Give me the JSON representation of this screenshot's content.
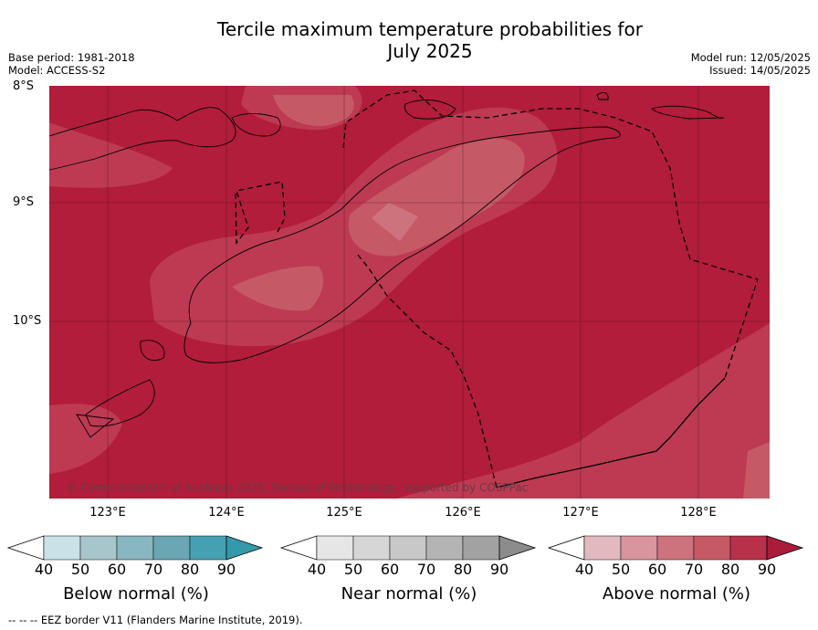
{
  "title_line1": "Tercile maximum temperature probabilities for",
  "title_line2": "July 2025",
  "base_period": "Base period: 1981-2018",
  "model": "Model: ACCESS-S2",
  "model_run": "Model run: 12/05/2025",
  "issued": "Issued: 14/05/2025",
  "lat_labels": [
    "8°S",
    "9°S",
    "10°S"
  ],
  "lon_labels": [
    "123°E",
    "124°E",
    "125°E",
    "126°E",
    "127°E",
    "128°E"
  ],
  "copyright": "© Commonwealth of Australia 2025, Bureau of Meteorology, supported by COSPPac",
  "footer": "--  --  -- EEZ border V11 (Flanders Marine Institute, 2019).",
  "colorbars": [
    {
      "label": "Below normal (%)",
      "ticks": [
        "40",
        "50",
        "60",
        "70",
        "80",
        "90"
      ],
      "colors": [
        "#ffffff",
        "#c9e1e7",
        "#a7c6cc",
        "#88b6c1",
        "#6ba6b4",
        "#45a0b2",
        "#3499aa"
      ]
    },
    {
      "label": "Near normal (%)",
      "ticks": [
        "40",
        "50",
        "60",
        "70",
        "80",
        "90"
      ],
      "colors": [
        "#ffffff",
        "#e6e6e6",
        "#d6d6d6",
        "#c8c8c8",
        "#b4b4b4",
        "#a2a2a2",
        "#8c8c8c"
      ]
    },
    {
      "label": "Above normal (%)",
      "ticks": [
        "40",
        "50",
        "60",
        "70",
        "80",
        "90"
      ],
      "colors": [
        "#ffffff",
        "#e2b9bf",
        "#d9959e",
        "#cd737d",
        "#c55a66",
        "#b8304a",
        "#aa1c3a"
      ]
    }
  ],
  "map_colors": {
    "above_90": "#b11d3a",
    "above_80": "#bd3a52",
    "above_70": "#c55a66",
    "above_60": "#cd737d"
  }
}
